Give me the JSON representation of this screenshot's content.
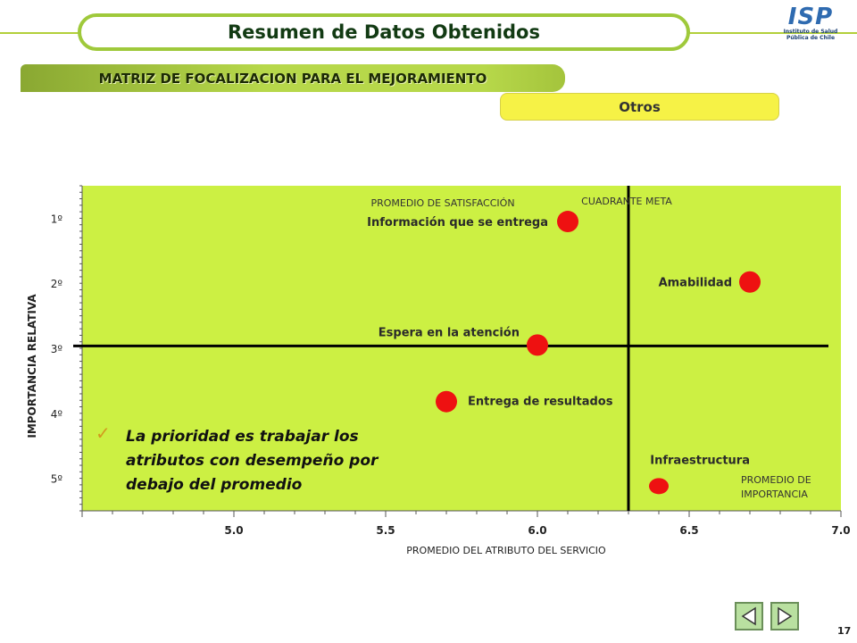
{
  "header": {
    "title": "Resumen de Datos Obtenidos",
    "logo_text": "ISP",
    "logo_subtitle_1": "Instituto de Salud",
    "logo_subtitle_2": "Pública de Chile"
  },
  "section": {
    "title": "MATRIZ DE FOCALIZACION PARA EL MEJORAMIENTO",
    "category": "Otros"
  },
  "chart_data": {
    "type": "scatter",
    "xlabel": "PROMEDIO DEL ATRIBUTO DEL SERVICIO",
    "ylabel": "IMPORTANCIA RELATIVA",
    "xlim": [
      4.5,
      7.0
    ],
    "ylim": [
      5.5,
      0.5
    ],
    "x_ticks": [
      "5.0",
      "5.5",
      "6.0",
      "6.5",
      "7.0"
    ],
    "y_ticks": [
      "1º",
      "2º",
      "3º",
      "4º",
      "5º"
    ],
    "points": [
      {
        "label": "Información que se entrega",
        "x": 6.1,
        "y": 1.05
      },
      {
        "label": "Amabilidad",
        "x": 6.7,
        "y": 1.98
      },
      {
        "label": "Espera en la atención",
        "x": 6.0,
        "y": 2.95
      },
      {
        "label": "Entrega de resultados",
        "x": 5.7,
        "y": 3.82
      },
      {
        "label": "Infraestructura",
        "x": 6.4,
        "y": 5.12
      }
    ],
    "reference_lines": {
      "vertical_x": 6.3,
      "horizontal_y": 2.95
    },
    "annotations": {
      "satisfaction_label": "PROMEDIO DE SATISFACCIÓN",
      "target_quadrant": "CUADRANTE  META",
      "importance_label_1": "PROMEDIO DE",
      "importance_label_2": "IMPORTANCIA"
    },
    "note": "La prioridad es trabajar los atributos con desempeño por debajo del promedio",
    "colors": {
      "plot_bg": "#ccf043",
      "marker": "#ee1111",
      "line": "#000000"
    }
  },
  "footer": {
    "page_number": "17",
    "prev_label": "previous-slide",
    "next_label": "next-slide"
  }
}
